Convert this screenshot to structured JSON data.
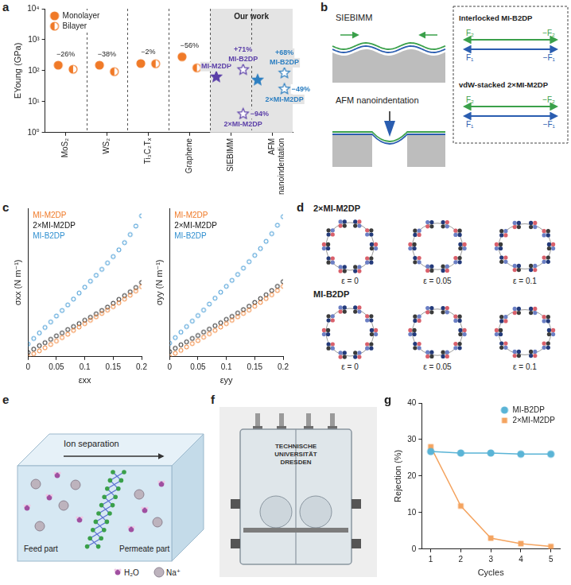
{
  "chart_data": [
    {
      "panel": "a",
      "type": "scatter",
      "y_label": "EYoung (GPa)",
      "categories": [
        "MoS₂",
        "WS₂",
        "Ti₃C₂Tₓ",
        "Graphene",
        "SIEBIMM",
        "AFM nanoindentation"
      ],
      "log": "y",
      "ylim": [
        1,
        10000
      ],
      "yticks": [
        {
          "value": 1,
          "label": "10⁰"
        },
        {
          "value": 10,
          "label": "10¹"
        },
        {
          "value": 100,
          "label": "10²"
        },
        {
          "value": 1000,
          "label": "10³"
        },
        {
          "value": 10000,
          "label": "10⁴"
        }
      ],
      "grid": false,
      "legend": "top-left",
      "series": [
        {
          "name": "Monolayer",
          "color": "#f07a28",
          "marker": "circle",
          "values": [
            150,
            150,
            170,
            280,
            null,
            null
          ]
        },
        {
          "name": "Bilayer",
          "color": "#f07a28",
          "marker": "half-circle",
          "values": [
            111,
            93,
            167,
            123,
            null,
            null
          ]
        },
        {
          "name": "MI-M2DP",
          "marker": "star",
          "colors": [
            null,
            null,
            null,
            null,
            "#5b3fa8",
            "#2d7fc1"
          ],
          "values": [
            null,
            null,
            null,
            null,
            63,
            50
          ]
        },
        {
          "name": "MI-B2DP",
          "marker": "star-open",
          "colors": [
            null,
            null,
            null,
            null,
            "#5b3fa8",
            "#2d7fc1"
          ],
          "values": [
            null,
            null,
            null,
            null,
            108,
            84
          ]
        },
        {
          "name": "2×MI-M2DP",
          "marker": "star-open",
          "colors": [
            null,
            null,
            null,
            null,
            "#5b3fa8",
            "#2d7fc1"
          ],
          "values": [
            null,
            null,
            null,
            null,
            4,
            25.5
          ]
        }
      ],
      "annotations": [
        {
          "text": "−26%",
          "category": "MoS₂"
        },
        {
          "text": "−38%",
          "category": "WS₂"
        },
        {
          "text": "−2%",
          "category": "Ti₃C₂Tₓ"
        },
        {
          "text": "−56%",
          "category": "Graphene"
        },
        {
          "text": "+71%",
          "category": "SIEBIMM",
          "series": "MI-B2DP"
        },
        {
          "text": "−94%",
          "category": "SIEBIMM",
          "series": "2×MI-M2DP"
        },
        {
          "text": "+68%",
          "category": "AFM nanoindentation",
          "series": "MI-B2DP"
        },
        {
          "text": "−49%",
          "category": "AFM nanoindentation",
          "series": "2×MI-M2DP"
        }
      ],
      "shaded": {
        "text": "Our work",
        "categories": [
          "SIEBIMM",
          "AFM nanoindentation"
        ]
      }
    },
    {
      "panel": "c",
      "type": "scatter",
      "x_label": "εxx",
      "y_label": "σxx (N m⁻¹)",
      "x": [
        0,
        0.01,
        0.02,
        0.03,
        0.04,
        0.05,
        0.06,
        0.07,
        0.08,
        0.09,
        0.1,
        0.11,
        0.12,
        0.13,
        0.14,
        0.15,
        0.16,
        0.17,
        0.18,
        0.19,
        0.2
      ],
      "xlim": [
        0,
        0.2
      ],
      "xticks": [
        0,
        0.05,
        0.1,
        0.15,
        0.2
      ],
      "ylim": [
        0,
        3.5
      ],
      "tick_labels": "x",
      "grid": false,
      "legend": "top-left",
      "series": [
        {
          "name": "MI-M2DP",
          "color": "#f07a28",
          "marker": "circle-open",
          "values": [
            0.0,
            0.07,
            0.14,
            0.21,
            0.29,
            0.37,
            0.45,
            0.53,
            0.62,
            0.7,
            0.78,
            0.86,
            0.94,
            1.02,
            1.1,
            1.18,
            1.27,
            1.36,
            1.45,
            1.55,
            1.65
          ]
        },
        {
          "name": "2×MI-M2DP",
          "color": "#111111",
          "marker": "circle-open",
          "values": [
            0.1,
            0.18,
            0.26,
            0.33,
            0.41,
            0.49,
            0.56,
            0.64,
            0.71,
            0.78,
            0.86,
            0.93,
            1.01,
            1.09,
            1.17,
            1.26,
            1.35,
            1.44,
            1.53,
            1.63,
            1.75
          ]
        },
        {
          "name": "MI-B2DP",
          "color": "#2f8fd0",
          "marker": "circle-open",
          "values": [
            0.3,
            0.43,
            0.56,
            0.69,
            0.82,
            0.96,
            1.09,
            1.22,
            1.36,
            1.5,
            1.64,
            1.78,
            1.92,
            2.06,
            2.21,
            2.36,
            2.52,
            2.69,
            2.88,
            3.08,
            3.32
          ]
        }
      ]
    },
    {
      "panel": "c",
      "type": "scatter",
      "x_label": "εyy",
      "y_label": "σyy (N m⁻¹)",
      "x": [
        0,
        0.01,
        0.02,
        0.03,
        0.04,
        0.05,
        0.06,
        0.07,
        0.08,
        0.09,
        0.1,
        0.11,
        0.12,
        0.13,
        0.14,
        0.15,
        0.16,
        0.17,
        0.18,
        0.19,
        0.2
      ],
      "xlim": [
        0,
        0.2
      ],
      "xticks": [
        0,
        0.05,
        0.1,
        0.15,
        0.2
      ],
      "ylim": [
        0,
        3.5
      ],
      "tick_labels": "x",
      "grid": false,
      "legend": "top-left",
      "series": [
        {
          "name": "MI-M2DP",
          "color": "#f07a28",
          "marker": "circle-open",
          "values": [
            0.0,
            0.08,
            0.15,
            0.23,
            0.31,
            0.38,
            0.46,
            0.54,
            0.62,
            0.7,
            0.78,
            0.86,
            0.94,
            1.02,
            1.1,
            1.19,
            1.28,
            1.37,
            1.46,
            1.56,
            1.66
          ]
        },
        {
          "name": "2×MI-M2DP",
          "color": "#111111",
          "marker": "circle-open",
          "values": [
            0.12,
            0.2,
            0.28,
            0.35,
            0.43,
            0.5,
            0.58,
            0.65,
            0.73,
            0.8,
            0.88,
            0.95,
            1.03,
            1.11,
            1.19,
            1.28,
            1.37,
            1.46,
            1.56,
            1.66,
            1.77
          ]
        },
        {
          "name": "MI-B2DP",
          "color": "#2f8fd0",
          "marker": "circle-open",
          "values": [
            0.32,
            0.45,
            0.58,
            0.71,
            0.84,
            0.97,
            1.1,
            1.24,
            1.38,
            1.52,
            1.66,
            1.8,
            1.94,
            2.09,
            2.24,
            2.39,
            2.55,
            2.72,
            2.9,
            3.1,
            3.3
          ]
        }
      ]
    },
    {
      "panel": "g",
      "type": "line",
      "x_label": "Cycles",
      "y_label": "Rejection (%)",
      "x": [
        1,
        2,
        3,
        4,
        5
      ],
      "xlim": [
        0.7,
        5.3
      ],
      "xticks": [
        1,
        2,
        3,
        4,
        5
      ],
      "ylim": [
        0,
        40
      ],
      "yticks": [
        0,
        10,
        20,
        30,
        40
      ],
      "grid": false,
      "legend": "top-right",
      "series": [
        {
          "name": "MI-B2DP",
          "color": "#5ab4d6",
          "marker": "circle",
          "values": [
            26.7,
            26.3,
            26.3,
            26.0,
            26.0
          ]
        },
        {
          "name": "2×MI-M2DP",
          "color": "#f4a460",
          "marker": "square",
          "values": [
            28.0,
            11.8,
            3.0,
            1.5,
            0.7
          ]
        }
      ]
    }
  ],
  "panel_b": {
    "panel": "b",
    "top_label": "SIEBIMM",
    "bottom_label": "AFM nanoindentation",
    "interlocked": {
      "title": "Interlocked MI-B2DP",
      "forces": [
        "F₂",
        "−F₂",
        "F₁",
        "−F₁"
      ]
    },
    "stacked": {
      "title": "vdW-stacked 2×MI-M2DP",
      "forces": [
        "F₂",
        "−F₂",
        "F₁",
        "−F₁"
      ]
    }
  },
  "panel_d": {
    "panel": "d",
    "rows": [
      {
        "title": "2×MI-M2DP",
        "strains": [
          "ε = 0",
          "ε = 0.05",
          "ε = 0.1"
        ]
      },
      {
        "title": "MI-B2DP",
        "strains": [
          "ε = 0",
          "ε = 0.05",
          "ε = 0.1"
        ]
      }
    ]
  },
  "panel_e": {
    "panel": "e",
    "arrow_label": "Ion separation",
    "left_label": "Feed part",
    "right_label": "Permeate part",
    "key_items": [
      "H₂O",
      "Na⁺"
    ]
  },
  "panel_f": {
    "panel": "f",
    "photo_text": [
      "TECHNISCHE",
      "UNIVERSITÄT",
      "DRESDEN"
    ]
  }
}
